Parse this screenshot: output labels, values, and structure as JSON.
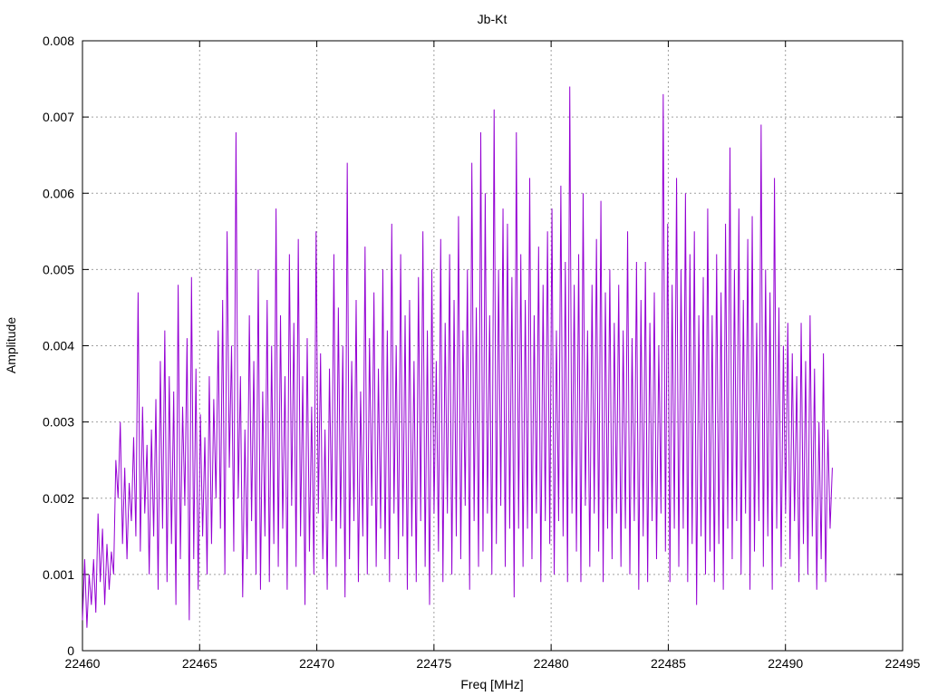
{
  "chart_data": {
    "type": "line",
    "title": "Jb-Kt",
    "xlabel": "Freq [MHz]",
    "ylabel": "Amplitude",
    "xlim": [
      22460,
      22495
    ],
    "ylim": [
      0,
      0.008
    ],
    "xticks": [
      "22460",
      "22465",
      "22470",
      "22475",
      "22480",
      "22485",
      "22490",
      "22495"
    ],
    "yticks": [
      "0",
      "0.001",
      "0.002",
      "0.003",
      "0.004",
      "0.005",
      "0.006",
      "0.007",
      "0.008"
    ],
    "grid": true,
    "series_color": "#9400d3",
    "series": [
      {
        "x_start": 22460,
        "x_end": 22492,
        "values": [
          0.0004,
          0.0012,
          0.0003,
          0.001,
          0.0006,
          0.0012,
          0.0005,
          0.0018,
          0.0009,
          0.0016,
          0.0006,
          0.0014,
          0.0008,
          0.0013,
          0.001,
          0.0025,
          0.002,
          0.003,
          0.0014,
          0.0024,
          0.0012,
          0.0022,
          0.0017,
          0.0028,
          0.0015,
          0.0047,
          0.0013,
          0.0032,
          0.0018,
          0.0027,
          0.001,
          0.0029,
          0.0015,
          0.0033,
          0.0008,
          0.0038,
          0.0016,
          0.0042,
          0.0009,
          0.0036,
          0.0014,
          0.0034,
          0.0006,
          0.0048,
          0.0012,
          0.0032,
          0.0019,
          0.0041,
          0.0004,
          0.0049,
          0.0012,
          0.0037,
          0.0008,
          0.0031,
          0.0015,
          0.0028,
          0.001,
          0.0036,
          0.0014,
          0.0033,
          0.002,
          0.0042,
          0.0016,
          0.0046,
          0.001,
          0.0055,
          0.0024,
          0.004,
          0.0013,
          0.0068,
          0.002,
          0.0036,
          0.0007,
          0.0029,
          0.0012,
          0.0044,
          0.0017,
          0.0038,
          0.001,
          0.005,
          0.0008,
          0.0034,
          0.0015,
          0.0046,
          0.0009,
          0.004,
          0.0014,
          0.0058,
          0.0011,
          0.0044,
          0.0016,
          0.0036,
          0.0008,
          0.0052,
          0.0019,
          0.0043,
          0.0011,
          0.0054,
          0.0015,
          0.0036,
          0.0006,
          0.0041,
          0.0013,
          0.0032,
          0.001,
          0.0055,
          0.0018,
          0.0039,
          0.0012,
          0.0029,
          0.0008,
          0.0037,
          0.0017,
          0.0052,
          0.0011,
          0.0045,
          0.0016,
          0.004,
          0.0007,
          0.0064,
          0.0012,
          0.0038,
          0.0017,
          0.0046,
          0.0009,
          0.0034,
          0.0015,
          0.0053,
          0.001,
          0.0041,
          0.0019,
          0.0047,
          0.0011,
          0.0037,
          0.0016,
          0.005,
          0.0012,
          0.0042,
          0.0009,
          0.0056,
          0.0018,
          0.004,
          0.0012,
          0.0052,
          0.0015,
          0.0044,
          0.0008,
          0.0046,
          0.0015,
          0.0038,
          0.0009,
          0.0049,
          0.0017,
          0.0055,
          0.0011,
          0.0042,
          0.0006,
          0.005,
          0.0018,
          0.0038,
          0.0013,
          0.0054,
          0.0009,
          0.0043,
          0.0018,
          0.0052,
          0.001,
          0.0046,
          0.0015,
          0.0057,
          0.0012,
          0.0042,
          0.0019,
          0.005,
          0.0008,
          0.0064,
          0.0017,
          0.0045,
          0.0011,
          0.0068,
          0.0013,
          0.006,
          0.0018,
          0.0044,
          0.001,
          0.0071,
          0.0014,
          0.005,
          0.0019,
          0.0058,
          0.0011,
          0.0056,
          0.0016,
          0.0049,
          0.0007,
          0.0068,
          0.0016,
          0.0052,
          0.0011,
          0.0046,
          0.0016,
          0.0062,
          0.0012,
          0.0044,
          0.0018,
          0.0053,
          0.0009,
          0.0048,
          0.0017,
          0.0055,
          0.0014,
          0.0058,
          0.001,
          0.0042,
          0.0017,
          0.0061,
          0.0015,
          0.0051,
          0.0009,
          0.0074,
          0.0018,
          0.0048,
          0.0013,
          0.0052,
          0.0009,
          0.006,
          0.0019,
          0.0042,
          0.0011,
          0.0048,
          0.0018,
          0.0054,
          0.0013,
          0.0059,
          0.0009,
          0.0047,
          0.0016,
          0.005,
          0.0012,
          0.0043,
          0.0018,
          0.0048,
          0.0011,
          0.0042,
          0.0016,
          0.0055,
          0.001,
          0.0041,
          0.0017,
          0.0051,
          0.0008,
          0.0046,
          0.0015,
          0.0051,
          0.0009,
          0.0043,
          0.0017,
          0.0047,
          0.0012,
          0.004,
          0.0018,
          0.0073,
          0.0013,
          0.0056,
          0.0009,
          0.0048,
          0.0016,
          0.0062,
          0.0011,
          0.005,
          0.0016,
          0.006,
          0.0009,
          0.0052,
          0.0014,
          0.0055,
          0.0006,
          0.0044,
          0.0015,
          0.0049,
          0.001,
          0.0058,
          0.0013,
          0.0044,
          0.0009,
          0.0052,
          0.0014,
          0.0047,
          0.0008,
          0.0056,
          0.0016,
          0.0066,
          0.0012,
          0.005,
          0.0017,
          0.0058,
          0.001,
          0.0046,
          0.0018,
          0.0054,
          0.0008,
          0.0057,
          0.0013,
          0.0043,
          0.0017,
          0.0069,
          0.0011,
          0.005,
          0.0015,
          0.0047,
          0.0008,
          0.0062,
          0.0016,
          0.0045,
          0.0011,
          0.004,
          0.0018,
          0.0043,
          0.0012,
          0.0039,
          0.0017,
          0.0036,
          0.0009,
          0.0043,
          0.0014,
          0.0038,
          0.001,
          0.0044,
          0.0015,
          0.0037,
          0.0008,
          0.003,
          0.0012,
          0.0039,
          0.0009,
          0.0029,
          0.0016,
          0.0024
        ]
      }
    ]
  }
}
